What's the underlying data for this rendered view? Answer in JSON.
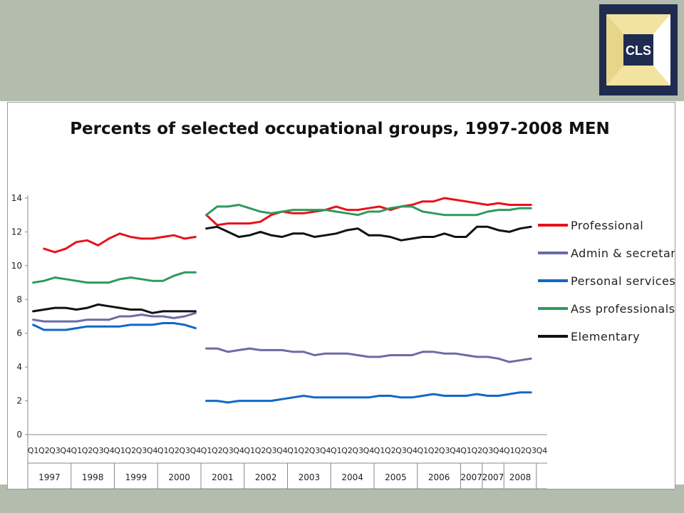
{
  "logo": {
    "text": "CLS",
    "colors": {
      "background": "#1f2b4f",
      "panel": "#f2e4a0",
      "text": "#ffffff"
    }
  },
  "colors": {
    "band": "#b3bcad",
    "axis": "#888888"
  },
  "chart_data": {
    "type": "line",
    "title": "Percents of selected occupational groups, 1997-2008 MEN",
    "xlabel": "",
    "ylabel": "",
    "ylim": [
      0,
      14
    ],
    "yticks": [
      0,
      2,
      4,
      6,
      8,
      10,
      12,
      14
    ],
    "grid": false,
    "legend_position": "right",
    "quarter_labels": [
      "Q1",
      "Q2",
      "Q3",
      "Q4",
      "Q1",
      "Q2",
      "Q3",
      "Q4",
      "Q1",
      "Q2",
      "Q3",
      "Q4",
      "Q1",
      "Q2",
      "Q3",
      "Q4",
      "Q1",
      "Q2",
      "Q3",
      "Q4",
      "Q1",
      "Q2",
      "Q3",
      "Q4",
      "Q1",
      "Q2",
      "Q3",
      "Q4",
      "Q1",
      "Q2",
      "Q3",
      "Q4",
      "Q1",
      "Q2",
      "Q3",
      "Q4",
      "Q1",
      "Q2",
      "Q3",
      "Q4",
      "Q1",
      "Q2",
      "Q3",
      "Q4",
      "Q1",
      "Q2",
      "Q3",
      "Q4"
    ],
    "year_labels": [
      "1997",
      "1998",
      "1999",
      "2000",
      "2001",
      "2002",
      "2003",
      "2004",
      "2005",
      "2006",
      "2007",
      "2007",
      "2008"
    ],
    "year_spans": [
      4,
      4,
      4,
      4,
      4,
      4,
      4,
      4,
      4,
      4,
      2,
      2,
      3
    ],
    "series": [
      {
        "name": "Professional",
        "color": "#e8111b",
        "values": [
          null,
          11.0,
          10.8,
          11.0,
          11.4,
          11.5,
          11.2,
          11.6,
          11.9,
          11.7,
          11.6,
          11.6,
          11.7,
          11.8,
          11.6,
          11.7,
          13.0,
          12.4,
          12.5,
          12.5,
          12.5,
          12.6,
          13.0,
          13.2,
          13.1,
          13.1,
          13.2,
          13.3,
          13.5,
          13.3,
          13.3,
          13.4,
          13.5,
          13.3,
          13.5,
          13.6,
          13.8,
          13.8,
          14.0,
          13.9,
          13.8,
          13.7,
          13.6,
          13.7,
          13.6,
          13.6,
          13.6,
          null
        ]
      },
      {
        "name": "Admin & secretarial",
        "color": "#6b6ba8",
        "values": [
          6.8,
          6.7,
          6.7,
          6.7,
          6.7,
          6.8,
          6.8,
          6.8,
          7.0,
          7.0,
          7.1,
          7.0,
          7.0,
          6.9,
          7.0,
          7.2,
          5.1,
          5.1,
          4.9,
          5.0,
          5.1,
          5.0,
          5.0,
          5.0,
          4.9,
          4.9,
          4.7,
          4.8,
          4.8,
          4.8,
          4.7,
          4.6,
          4.6,
          4.7,
          4.7,
          4.7,
          4.9,
          4.9,
          4.8,
          4.8,
          4.7,
          4.6,
          4.6,
          4.5,
          4.3,
          4.4,
          4.5,
          null
        ]
      },
      {
        "name": "Personal services",
        "color": "#1168c8",
        "values": [
          6.5,
          6.2,
          6.2,
          6.2,
          6.3,
          6.4,
          6.4,
          6.4,
          6.4,
          6.5,
          6.5,
          6.5,
          6.6,
          6.6,
          6.5,
          6.3,
          2.0,
          2.0,
          1.9,
          2.0,
          2.0,
          2.0,
          2.0,
          2.1,
          2.2,
          2.3,
          2.2,
          2.2,
          2.2,
          2.2,
          2.2,
          2.2,
          2.3,
          2.3,
          2.2,
          2.2,
          2.3,
          2.4,
          2.3,
          2.3,
          2.3,
          2.4,
          2.3,
          2.3,
          2.4,
          2.5,
          2.5,
          null
        ]
      },
      {
        "name": "Ass professionals",
        "color": "#2e9a5c",
        "values": [
          9.0,
          9.1,
          9.3,
          9.2,
          9.1,
          9.0,
          9.0,
          9.0,
          9.2,
          9.3,
          9.2,
          9.1,
          9.1,
          9.4,
          9.6,
          9.6,
          13.0,
          13.5,
          13.5,
          13.6,
          13.4,
          13.2,
          13.1,
          13.2,
          13.3,
          13.3,
          13.3,
          13.3,
          13.2,
          13.1,
          13.0,
          13.2,
          13.2,
          13.4,
          13.5,
          13.5,
          13.2,
          13.1,
          13.0,
          13.0,
          13.0,
          13.0,
          13.2,
          13.3,
          13.3,
          13.4,
          13.4,
          null
        ]
      },
      {
        "name": "Elementary",
        "color": "#111111",
        "values": [
          7.3,
          7.4,
          7.5,
          7.5,
          7.4,
          7.5,
          7.7,
          7.6,
          7.5,
          7.4,
          7.4,
          7.2,
          7.3,
          7.3,
          7.3,
          7.3,
          12.2,
          12.3,
          12.0,
          11.7,
          11.8,
          12.0,
          11.8,
          11.7,
          11.9,
          11.9,
          11.7,
          11.8,
          11.9,
          12.1,
          12.2,
          11.8,
          11.8,
          11.7,
          11.5,
          11.6,
          11.7,
          11.7,
          11.9,
          11.7,
          11.7,
          12.3,
          12.3,
          12.1,
          12.0,
          12.2,
          12.3,
          null
        ]
      }
    ]
  }
}
